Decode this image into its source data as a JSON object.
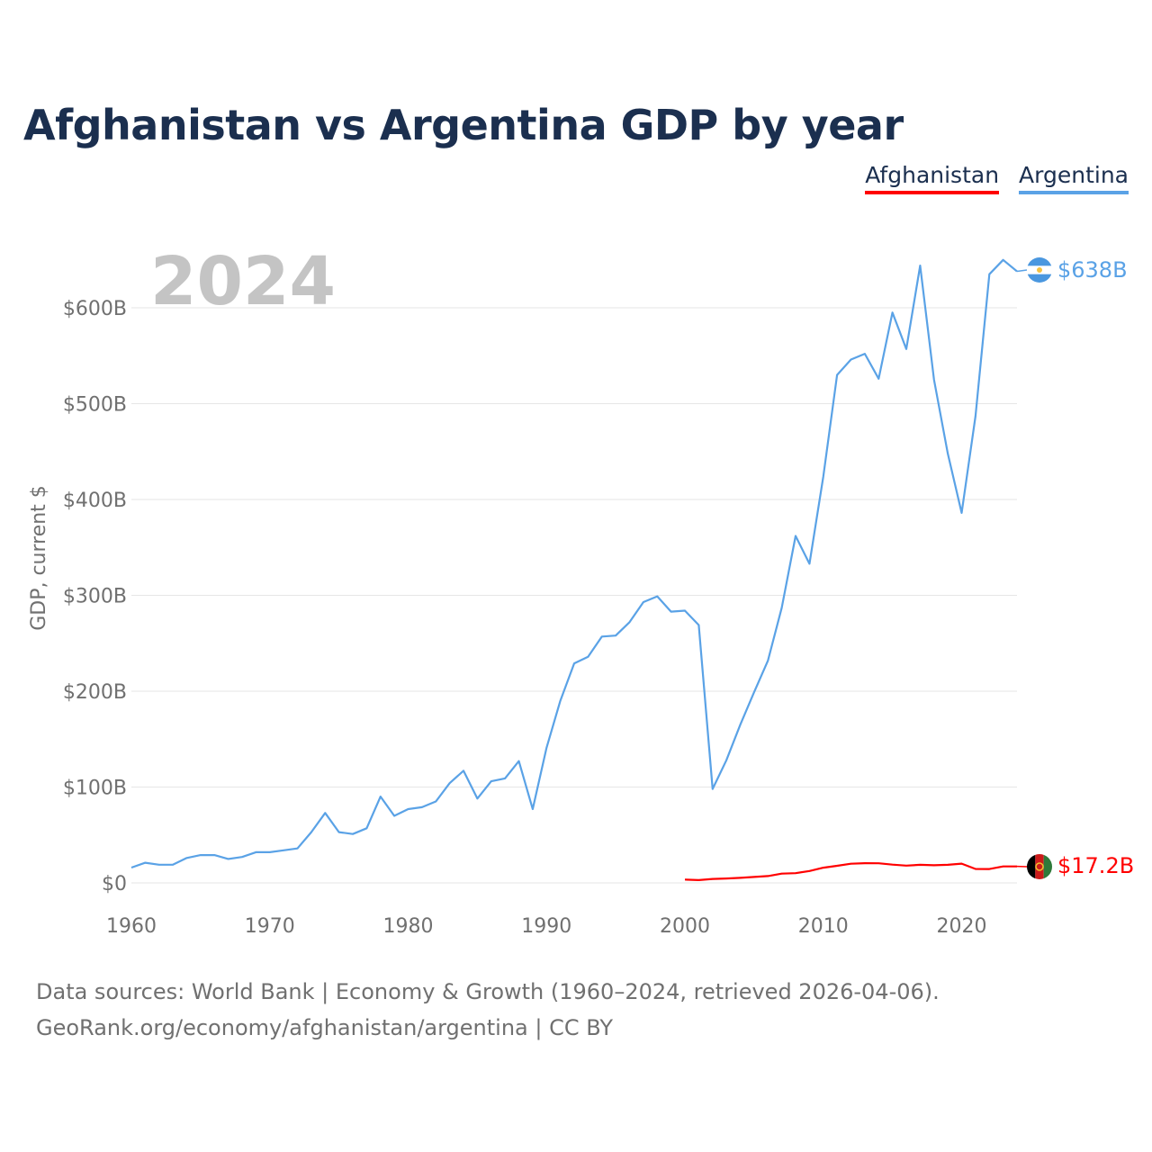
{
  "title": "Afghanistan vs Argentina GDP by year",
  "legend": {
    "afghanistan": "Afghanistan",
    "argentina": "Argentina"
  },
  "year_label": "2024",
  "colors": {
    "title": "#1b2f4f",
    "afghanistan": "#ff0000",
    "argentina": "#5aa2e6",
    "axis_text": "#707070",
    "grid": "#e6e6e6",
    "year_watermark": "#c4c4c4"
  },
  "end_labels": {
    "argentina": "$638B",
    "afghanistan": "$17.2B"
  },
  "flags": {
    "argentina": "argentina-flag-icon",
    "afghanistan": "afghanistan-flag-icon"
  },
  "footer": {
    "line1": "Data sources: World Bank | Economy & Growth (1960–2024, retrieved 2026-04-06).",
    "line2": "GeoRank.org/economy/afghanistan/argentina | CC BY"
  },
  "chart_data": {
    "type": "line",
    "title": "Afghanistan vs Argentina GDP by year",
    "xlabel": "",
    "ylabel": "GDP, current $",
    "xlim": [
      1960,
      2024
    ],
    "ylim": [
      0,
      600
    ],
    "y_units": "billion USD",
    "grid": true,
    "legend_position": "top-right",
    "x_ticks": [
      1960,
      1970,
      1980,
      1990,
      2000,
      2010,
      2020
    ],
    "x_tick_labels": [
      "1960",
      "1970",
      "1980",
      "1990",
      "2000",
      "2010",
      "2020"
    ],
    "y_ticks": [
      0,
      100,
      200,
      300,
      400,
      500,
      600
    ],
    "y_tick_labels": [
      "$0",
      "$100B",
      "$200B",
      "$300B",
      "$400B",
      "$500B",
      "$600B"
    ],
    "series": [
      {
        "name": "Argentina",
        "color": "#5aa2e6",
        "x": [
          1960,
          1961,
          1962,
          1963,
          1964,
          1965,
          1966,
          1967,
          1968,
          1969,
          1970,
          1971,
          1972,
          1973,
          1974,
          1975,
          1976,
          1977,
          1978,
          1979,
          1980,
          1981,
          1982,
          1983,
          1984,
          1985,
          1986,
          1987,
          1988,
          1989,
          1990,
          1991,
          1992,
          1993,
          1994,
          1995,
          1996,
          1997,
          1998,
          1999,
          2000,
          2001,
          2002,
          2003,
          2004,
          2005,
          2006,
          2007,
          2008,
          2009,
          2010,
          2011,
          2012,
          2013,
          2014,
          2015,
          2016,
          2017,
          2018,
          2019,
          2020,
          2021,
          2022,
          2023,
          2024
        ],
        "values": [
          16,
          21,
          19,
          19,
          26,
          29,
          29,
          25,
          27,
          32,
          32,
          34,
          36,
          53,
          73,
          53,
          51,
          57,
          90,
          70,
          77,
          79,
          85,
          104,
          117,
          88,
          106,
          109,
          127,
          77,
          141,
          190,
          229,
          236,
          257,
          258,
          272,
          293,
          299,
          283,
          284,
          269,
          98,
          128,
          165,
          199,
          232,
          287,
          362,
          333,
          424,
          530,
          546,
          552,
          526,
          595,
          557,
          644,
          525,
          448,
          386,
          487,
          635,
          650,
          638
        ]
      },
      {
        "name": "Afghanistan",
        "color": "#ff0000",
        "x": [
          2000,
          2001,
          2002,
          2003,
          2004,
          2005,
          2006,
          2007,
          2008,
          2009,
          2010,
          2011,
          2012,
          2013,
          2014,
          2015,
          2016,
          2017,
          2018,
          2019,
          2020,
          2021,
          2022,
          2023,
          2024
        ],
        "values": [
          3.5,
          2.9,
          4.1,
          4.6,
          5.3,
          6.2,
          7.1,
          9.7,
          10.1,
          12.4,
          15.9,
          17.8,
          20.0,
          20.6,
          20.5,
          19.1,
          18.0,
          18.9,
          18.4,
          18.9,
          20.1,
          14.6,
          14.5,
          17.2,
          17.2
        ]
      }
    ]
  }
}
